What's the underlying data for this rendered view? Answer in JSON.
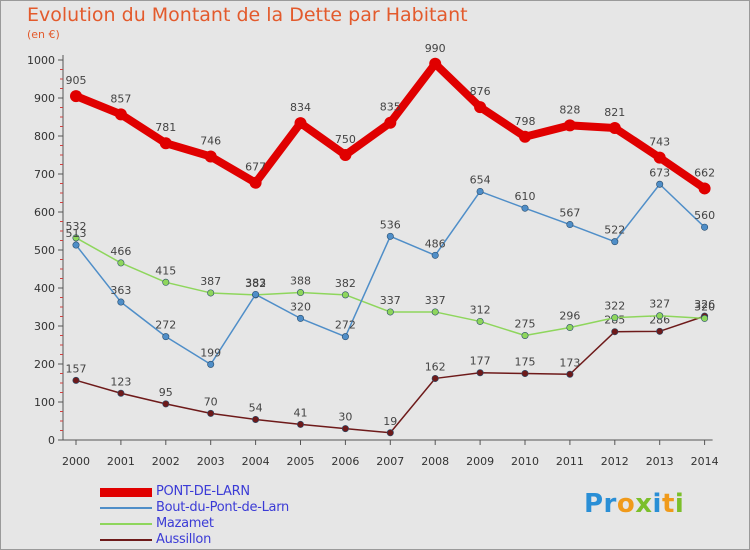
{
  "header": {
    "title": "Evolution du Montant de la Dette par Habitant",
    "subtitle": "(en €)"
  },
  "brand": {
    "logo_text": "Proxiti"
  },
  "chart_data": {
    "type": "line",
    "title": "Evolution du Montant de la Dette par Habitant",
    "subtitle": "(en €)",
    "xlabel": "",
    "ylabel": "",
    "x": [
      "2000",
      "2001",
      "2002",
      "2003",
      "2004",
      "2005",
      "2006",
      "2007",
      "2008",
      "2009",
      "2010",
      "2011",
      "2012",
      "2013",
      "2014"
    ],
    "ylim": [
      0,
      1000
    ],
    "yticks": [
      0,
      100,
      200,
      300,
      400,
      500,
      600,
      700,
      800,
      900,
      1000
    ],
    "grid": false,
    "legend_position": "bottom-left",
    "series": [
      {
        "name": "PONT-DE-LARN",
        "color": "#e00000",
        "emphasis": true,
        "values": [
          905,
          857,
          781,
          746,
          677,
          834,
          750,
          835,
          990,
          876,
          798,
          828,
          821,
          743,
          662
        ]
      },
      {
        "name": "Bout-du-Pont-de-Larn",
        "color": "#4f8ec8",
        "values": [
          513,
          363,
          272,
          199,
          383,
          320,
          272,
          536,
          486,
          654,
          610,
          567,
          522,
          673,
          560
        ]
      },
      {
        "name": "Mazamet",
        "color": "#8ed65c",
        "values": [
          532,
          466,
          415,
          387,
          382,
          388,
          382,
          337,
          337,
          312,
          275,
          296,
          322,
          327,
          320
        ]
      },
      {
        "name": "Aussillon",
        "color": "#6e1a1a",
        "values": [
          157,
          123,
          95,
          70,
          54,
          41,
          30,
          19,
          162,
          177,
          175,
          173,
          285,
          286,
          326
        ]
      }
    ]
  }
}
